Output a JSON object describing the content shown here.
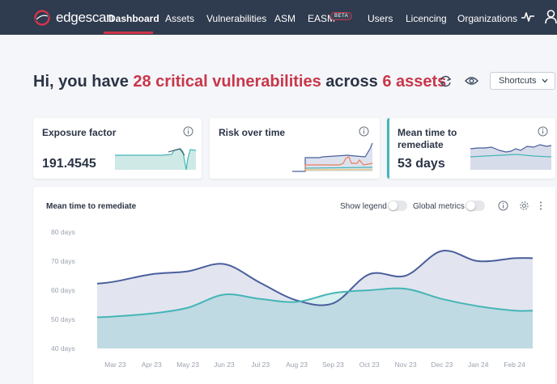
{
  "nav": {
    "logo_text": "edgescan",
    "items": [
      "Dashboard",
      "Assets",
      "Vulnerabilities",
      "ASM",
      "EASM",
      "Users",
      "Licencing",
      "Organizations"
    ],
    "beta_badge": "BETA",
    "active_index": 0
  },
  "greeting": {
    "prefix": "Hi, you have ",
    "critical": "28 critical vulnerabilities",
    "middle": " across ",
    "assets": "6 assets"
  },
  "shortcuts": {
    "label": "Shortcuts"
  },
  "cards": {
    "exposure": {
      "title": "Exposure factor",
      "value": "191.4545"
    },
    "risk": {
      "title": "Risk over time"
    },
    "mttr": {
      "title_line1": "Mean time to",
      "title_line2": "remediate",
      "value": "53 days"
    }
  },
  "chart_panel": {
    "title": "Mean time to remediate",
    "show_legend_label": "Show legend",
    "global_metrics_label": "Global metrics"
  },
  "colors": {
    "nav_bg": "#2f3b4e",
    "accent": "#c8374a",
    "series_dark": "#4a5f9c",
    "series_teal": "#45b5b7"
  },
  "chart_data": {
    "type": "area",
    "x": [
      "Mar 23",
      "Apr 23",
      "May 23",
      "Jun 23",
      "Jul 23",
      "Aug 23",
      "Sep 23",
      "Oct 23",
      "Nov 23",
      "Dec 23",
      "Jan 24",
      "Feb 24"
    ],
    "y_ticks": [
      "80 days",
      "70 days",
      "60 days",
      "50 days",
      "40 days"
    ],
    "ylim": [
      40,
      80
    ],
    "series": [
      {
        "color": "#4a5f9c",
        "values": [
          63,
          65.5,
          66.5,
          69,
          62.5,
          56.5,
          55.5,
          65.5,
          65,
          73.5,
          70,
          71
        ]
      },
      {
        "color": "#45b5b7",
        "values": [
          51,
          52,
          54,
          58.5,
          57,
          56,
          59,
          60,
          60.5,
          57,
          54.5,
          53
        ]
      }
    ],
    "grid": false,
    "legend": "hidden"
  }
}
